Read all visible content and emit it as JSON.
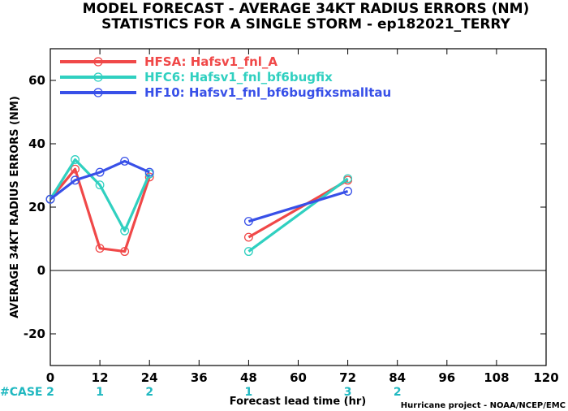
{
  "chart_data": {
    "type": "line",
    "title": "MODEL FORECAST - AVERAGE 34KT RADIUS ERRORS (NM)",
    "subtitle": "STATISTICS FOR A SINGLE STORM - ep182021_TERRY",
    "xlabel": "Forecast lead time (hr)",
    "ylabel": "AVERAGE 34KT RADIUS ERRORS (NM)",
    "xlim": [
      0,
      120
    ],
    "ylim": [
      -30,
      70
    ],
    "xticks": [
      0,
      12,
      24,
      36,
      48,
      60,
      72,
      84,
      96,
      108,
      120
    ],
    "yticks": [
      -20,
      0,
      20,
      40,
      60
    ],
    "zero_line": 0,
    "legend_position": "top-left",
    "series": [
      {
        "name": "HFSA: Hafsv1_fnl_A",
        "color": "#f04848",
        "segments": [
          [
            [
              0,
              22.5
            ],
            [
              6,
              32
            ],
            [
              12,
              7
            ],
            [
              18,
              6
            ],
            [
              24,
              29.5
            ]
          ],
          [
            [
              48,
              10.5
            ],
            [
              72,
              28.5
            ]
          ]
        ]
      },
      {
        "name": "HFC6: Hafsv1_fnl_bf6bugfix",
        "color": "#30d0c0",
        "segments": [
          [
            [
              0,
              22.5
            ],
            [
              6,
              35
            ],
            [
              12,
              27
            ],
            [
              18,
              12.5
            ],
            [
              24,
              30.5
            ]
          ],
          [
            [
              48,
              6
            ],
            [
              72,
              29
            ]
          ]
        ]
      },
      {
        "name": "HF10: Hafsv1_fnl_bf6bugfixsmalltau",
        "color": "#3850e8",
        "segments": [
          [
            [
              0,
              22.5
            ],
            [
              6,
              28.5
            ],
            [
              12,
              31
            ],
            [
              18,
              34.5
            ],
            [
              24,
              31
            ]
          ],
          [
            [
              48,
              15.5
            ],
            [
              72,
              25
            ]
          ]
        ]
      }
    ],
    "case_label": "#CASE",
    "case_counts": [
      {
        "x": 0,
        "n": "2"
      },
      {
        "x": 12,
        "n": "1"
      },
      {
        "x": 24,
        "n": "2"
      },
      {
        "x": 48,
        "n": "1"
      },
      {
        "x": 72,
        "n": "3"
      },
      {
        "x": 84,
        "n": "2"
      }
    ],
    "case_color": "#20b8c0",
    "credit": "Hurricane project - NOAA/NCEP/EMC"
  }
}
